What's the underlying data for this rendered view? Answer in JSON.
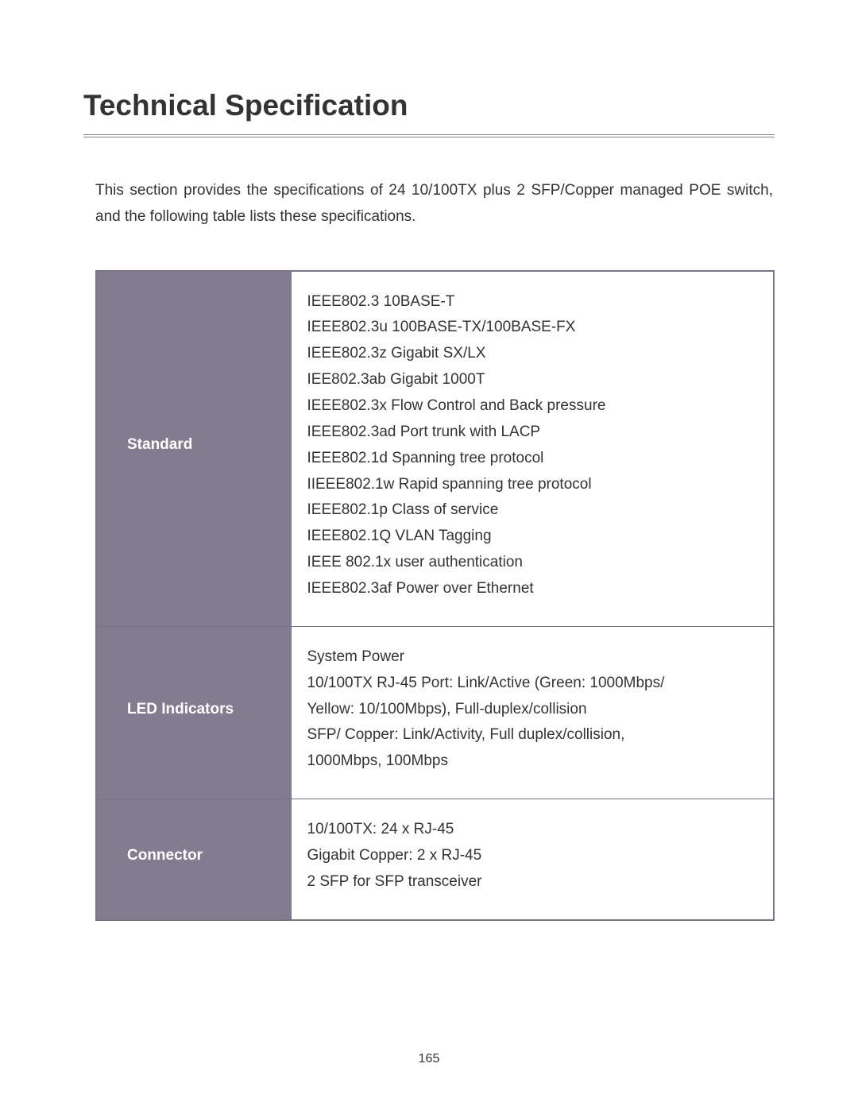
{
  "title": "Technical Specification",
  "intro": "This section provides the specifications of 24 10/100TX plus 2 SFP/Copper managed POE switch, and the following table lists these specifications.",
  "table": {
    "label_bg_color": "#837b8f",
    "label_text_color": "#ffffff",
    "border_color": "#7b7387",
    "value_text_color": "#333333",
    "label_fontsize": 19,
    "value_fontsize": 19,
    "rows": [
      {
        "label": "Standard",
        "lines": [
          "IEEE802.3 10BASE-T",
          "IEEE802.3u 100BASE-TX/100BASE-FX",
          "IEEE802.3z Gigabit SX/LX",
          "IEE802.3ab Gigabit 1000T",
          "IEEE802.3x Flow Control and Back pressure",
          "IEEE802.3ad Port trunk with LACP",
          "IEEE802.1d Spanning tree protocol",
          "IIEEE802.1w Rapid spanning tree protocol",
          "IEEE802.1p Class of service",
          "IEEE802.1Q VLAN Tagging",
          "IEEE 802.1x user authentication",
          "IEEE802.3af Power over Ethernet"
        ]
      },
      {
        "label": "LED Indicators",
        "lines": [
          "System Power",
          "10/100TX RJ-45 Port: Link/Active (Green: 1000Mbps/",
          "Yellow: 10/100Mbps), Full-duplex/collision",
          "SFP/ Copper: Link/Activity, Full duplex/collision,",
          "1000Mbps, 100Mbps"
        ]
      },
      {
        "label": "Connector",
        "lines": [
          "10/100TX: 24 x RJ-45",
          "Gigabit Copper: 2 x RJ-45",
          "2 SFP for SFP transceiver"
        ]
      }
    ]
  },
  "page_number": "165"
}
